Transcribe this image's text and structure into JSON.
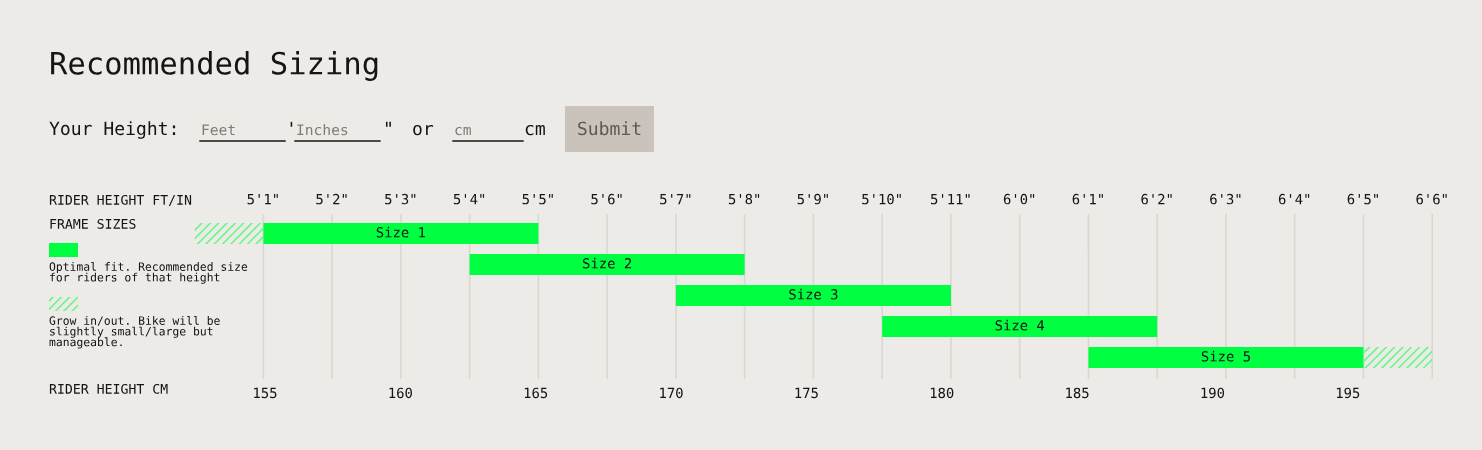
{
  "chart_data": {
    "type": "bar",
    "orientation": "horizontal",
    "title": "Recommended Sizing",
    "annotations": [
      "Your Height:",
      "Feet",
      "'",
      "Inches",
      "\"",
      "or",
      "cm",
      "cm",
      "Submit",
      "5'1\"",
      "5'2\"",
      "5'3\"",
      "5'4\"",
      "5'5\"",
      "5'6\"",
      "5'7\"",
      "5'8\"",
      "5'9\"",
      "5'10\"",
      "5'11\"",
      "6'0\"",
      "6'1\"",
      "6'2\"",
      "6'3\"",
      "6'4\"",
      "6'5\"",
      "6'6\""
    ],
    "categories": [
      "Size 1",
      "Size 2",
      "Size 3",
      "Size 4",
      "Size 5"
    ],
    "xlabel": "RIDER HEIGHT CM",
    "x2label": "RIDER HEIGHT FT/IN",
    "xlim": [
      152.4,
      198.3
    ],
    "xticks": [
      155,
      160,
      165,
      170,
      175,
      180,
      185,
      190,
      195
    ],
    "series": [
      {
        "name": "Optimal fit. Recommended size for riders of that height",
        "color": "#00ff41",
        "base": [
          154.94,
          162.56,
          170.18,
          177.8,
          185.42
        ],
        "values": [
          10.16,
          10.16,
          10.16,
          10.16,
          10.16
        ]
      },
      {
        "name": "Grow in/out. Bike will be slightly small/large but manageable.",
        "color": "#6ef58e",
        "base": [
          152.4,
          null,
          null,
          null,
          195.58
        ],
        "values": [
          2.54,
          null,
          null,
          null,
          2.54
        ]
      }
    ],
    "ref_lines": [
      {
        "axis": "x",
        "value": 154.94,
        "color": "#dad8d3"
      },
      {
        "axis": "x",
        "value": 157.48,
        "color": "#dad8d3"
      },
      {
        "axis": "x",
        "value": 160.02,
        "color": "#dad8d3"
      },
      {
        "axis": "x",
        "value": 162.56,
        "color": "#dad8d3"
      },
      {
        "axis": "x",
        "value": 165.1,
        "color": "#dad8d3"
      },
      {
        "axis": "x",
        "value": 167.64,
        "color": "#dad8d3"
      },
      {
        "axis": "x",
        "value": 170.18,
        "color": "#dad8d3"
      },
      {
        "axis": "x",
        "value": 172.72,
        "color": "#dad8d3"
      },
      {
        "axis": "x",
        "value": 175.26,
        "color": "#dad8d3"
      },
      {
        "axis": "x",
        "value": 177.8,
        "color": "#dad8d3"
      },
      {
        "axis": "x",
        "value": 180.34,
        "color": "#dad8d3"
      },
      {
        "axis": "x",
        "value": 182.88,
        "color": "#dad8d3"
      },
      {
        "axis": "x",
        "value": 185.42,
        "color": "#dad8d3"
      },
      {
        "axis": "x",
        "value": 187.96,
        "color": "#dad8d3"
      },
      {
        "axis": "x",
        "value": 190.5,
        "color": "#dad8d3"
      },
      {
        "axis": "x",
        "value": 193.04,
        "color": "#dad8d3"
      },
      {
        "axis": "x",
        "value": 195.58,
        "color": "#dad8d3"
      },
      {
        "axis": "x",
        "value": 198.12,
        "color": "#dad8d3"
      }
    ],
    "legend": "left",
    "legend_title": "FRAME SIZES",
    "tick_labels": "x"
  }
}
